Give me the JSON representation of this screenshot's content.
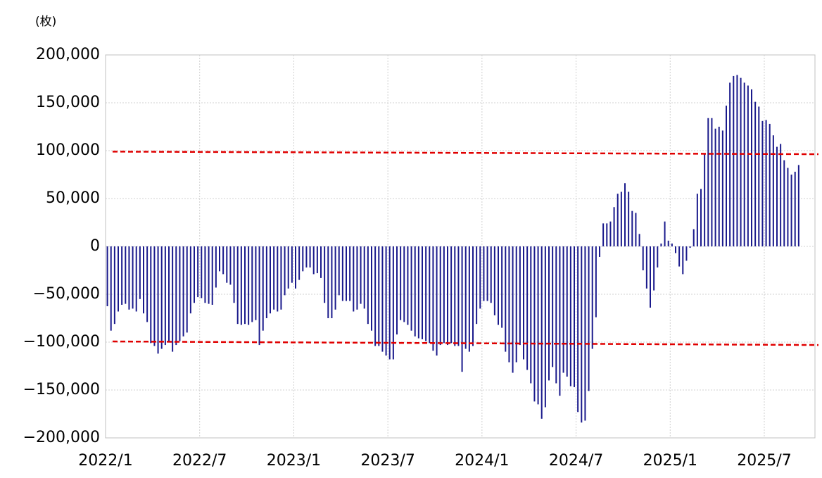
{
  "chart_data": {
    "type": "bar",
    "y_unit": "(枚)",
    "categories": [
      "2022/1",
      null,
      null,
      null,
      null,
      null,
      null,
      null,
      null,
      null,
      null,
      null,
      null,
      null,
      null,
      null,
      null,
      null,
      null,
      null,
      null,
      null,
      null,
      null,
      null,
      null,
      "2022/7",
      null,
      null,
      null,
      null,
      null,
      null,
      null,
      null,
      null,
      null,
      null,
      null,
      null,
      null,
      null,
      null,
      null,
      null,
      null,
      null,
      null,
      null,
      null,
      null,
      null,
      "2023/1",
      null,
      null,
      null,
      null,
      null,
      null,
      null,
      null,
      null,
      null,
      null,
      null,
      null,
      null,
      null,
      null,
      null,
      null,
      null,
      null,
      null,
      null,
      null,
      null,
      null,
      "2023/7",
      null,
      null,
      null,
      null,
      null,
      null,
      null,
      null,
      null,
      null,
      null,
      null,
      null,
      null,
      null,
      null,
      null,
      null,
      null,
      null,
      null,
      null,
      null,
      null,
      null,
      "2024/1",
      null,
      null,
      null,
      null,
      null,
      null,
      null,
      null,
      null,
      null,
      null,
      null,
      null,
      null,
      null,
      null,
      null,
      null,
      null,
      null,
      null,
      null,
      null,
      null,
      null,
      "2024/7",
      null,
      null,
      null,
      null,
      null,
      null,
      null,
      null,
      null,
      null,
      null,
      null,
      null,
      null,
      null,
      null,
      null,
      null,
      null,
      null,
      null,
      null,
      null,
      null,
      null,
      "2025/1",
      null,
      null,
      null,
      null,
      null,
      null,
      null,
      null,
      null,
      null,
      null,
      null,
      null,
      null,
      null,
      null,
      null,
      null,
      null,
      null,
      null,
      null,
      null,
      null,
      null,
      "2025/7",
      null,
      null,
      null,
      null,
      null,
      null,
      null,
      null,
      null,
      null,
      null,
      null,
      null
    ],
    "values": [
      -62500,
      -88000,
      -81000,
      -68000,
      -61000,
      -60000,
      -66000,
      -65000,
      -68000,
      -55000,
      -70000,
      -79000,
      -101000,
      -104000,
      -112000,
      -107000,
      -103000,
      -99000,
      -110000,
      -103000,
      -99000,
      -94000,
      -90000,
      -70000,
      -59000,
      -53000,
      -54000,
      -59000,
      -60000,
      -61000,
      -43000,
      -26000,
      -29000,
      -38000,
      -40000,
      -59000,
      -81000,
      -82000,
      -81000,
      -82000,
      -79000,
      -77000,
      -103000,
      -88000,
      -75000,
      -70000,
      -66000,
      -68000,
      -66000,
      -51000,
      -44000,
      -38000,
      -44000,
      -35000,
      -26000,
      -22000,
      -22000,
      -29000,
      -28000,
      -33000,
      -59000,
      -75000,
      -75000,
      -66000,
      -51000,
      -57000,
      -57000,
      -57000,
      -68000,
      -66000,
      -60000,
      -65000,
      -81000,
      -88000,
      -104000,
      -104000,
      -110000,
      -114000,
      -118000,
      -118000,
      -92000,
      -77000,
      -79000,
      -82000,
      -88000,
      -94000,
      -96000,
      -97000,
      -99000,
      -101000,
      -109000,
      -114000,
      -103000,
      -101000,
      -103000,
      -101000,
      -104000,
      -104000,
      -131000,
      -107000,
      -110000,
      -104000,
      -81000,
      -65000,
      -57000,
      -57000,
      -59000,
      -72000,
      -82000,
      -85000,
      -110000,
      -121000,
      -132000,
      -121000,
      -103000,
      -118000,
      -129000,
      -143000,
      -162000,
      -165000,
      -180000,
      -168000,
      -140000,
      -126000,
      -143000,
      -156000,
      -132000,
      -136000,
      -146000,
      -147000,
      -173000,
      -184000,
      -182000,
      -151000,
      -107000,
      -74000,
      -11000,
      24000,
      24000,
      26000,
      41000,
      55000,
      57000,
      66000,
      57000,
      37000,
      35000,
      13000,
      -25000,
      -44000,
      -64000,
      -46000,
      -22000,
      3000,
      26000,
      6000,
      3000,
      -7000,
      -21000,
      -29000,
      -15000,
      -1500,
      18000,
      55000,
      60000,
      97000,
      134000,
      134000,
      123000,
      125000,
      121000,
      147000,
      171000,
      178000,
      179000,
      176000,
      171000,
      168000,
      164000,
      151000,
      146000,
      131000,
      132000,
      128000,
      116000,
      104000,
      107000,
      90000,
      82000,
      75000,
      78000,
      85000,
      null,
      null,
      null,
      null
    ],
    "color": "#1a1a8c",
    "ylim": [
      -200000,
      200000
    ],
    "yticks": [
      {
        "value": -200000,
        "label": "−200,000"
      },
      {
        "value": -150000,
        "label": "−150,000"
      },
      {
        "value": -100000,
        "label": "−100,000"
      },
      {
        "value": -50000,
        "label": "−50,000"
      },
      0,
      {
        "value": 50000,
        "label": "50,000"
      },
      {
        "value": 100000,
        "label": "100,000"
      },
      {
        "value": 150000,
        "label": "150,000"
      },
      {
        "value": 200000,
        "label": "200,000"
      }
    ],
    "negative_tick_color": "#e00000",
    "grid": true,
    "reference_lines": [
      {
        "color": "#e00000",
        "values": [
          99000,
          96300
        ]
      },
      {
        "color": "#e00000",
        "values": [
          -99300,
          -103000
        ]
      }
    ]
  }
}
